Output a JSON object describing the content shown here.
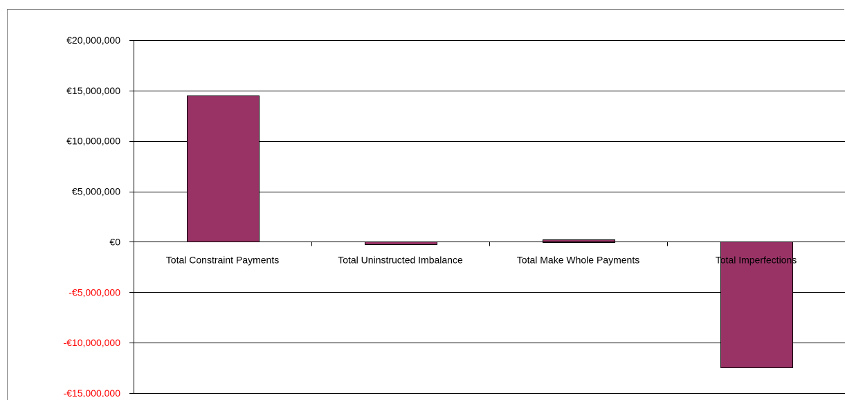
{
  "chart_data": {
    "type": "bar",
    "title": "",
    "xlabel": "",
    "ylabel": "",
    "categories": [
      "Total Constraint Payments",
      "Total Uninstructed Imbalance",
      "Total Make Whole Payments",
      "Total Imperfections"
    ],
    "values": [
      14500000,
      -300000,
      250000,
      -12500000
    ],
    "ylim": [
      -15000000,
      20000000
    ],
    "yticks": [
      20000000,
      15000000,
      10000000,
      5000000,
      0,
      -5000000,
      -10000000,
      -15000000
    ],
    "ytick_labels": [
      "€20,000,000",
      "€15,000,000",
      "€10,000,000",
      "€5,000,000",
      "€0",
      "-€5,000,000",
      "-€10,000,000",
      "-€15,000,000"
    ],
    "grid": true,
    "legend": "none",
    "colors": {
      "bar": "#993366",
      "bar_outline": "#000000",
      "gridline": "#000000",
      "positive_tick": "#000000",
      "negative_tick": "#ff0000"
    }
  }
}
